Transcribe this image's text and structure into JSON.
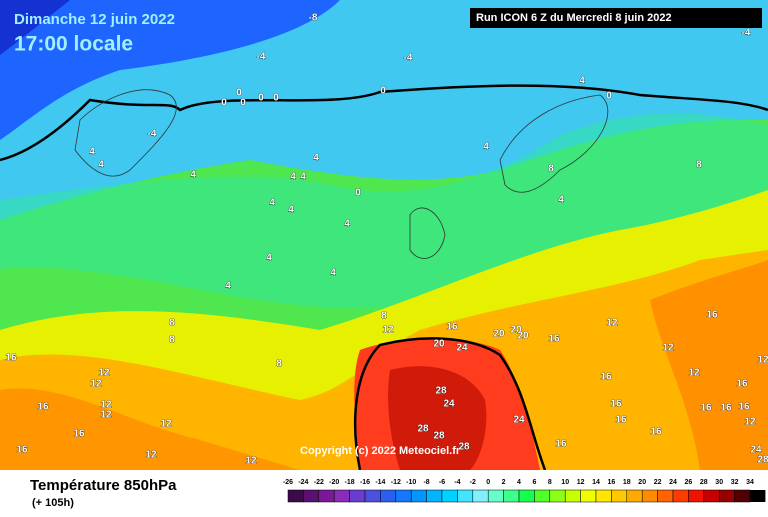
{
  "header": {
    "date": "Dimanche 12 juin 2022",
    "time": "17:00 locale"
  },
  "run": "Run ICON 6 Z du Mercredi 8 juin 2022",
  "copyright": "Copyright (c) 2022 Meteociel.fr",
  "footer": {
    "title": "Température 850hPa",
    "subtitle": "(+ 105h)"
  },
  "legend": {
    "ticks": [
      -26,
      -24,
      -22,
      -20,
      -18,
      -16,
      -14,
      -12,
      -10,
      -8,
      -6,
      -4,
      -2,
      0,
      2,
      4,
      6,
      8,
      10,
      12,
      14,
      16,
      18,
      20,
      22,
      24,
      26,
      28,
      30,
      32,
      34
    ],
    "colors": [
      "#3a0a4a",
      "#5a1070",
      "#7a1896",
      "#8a2cb8",
      "#6a3cd0",
      "#4a50e0",
      "#2a60f0",
      "#1478ff",
      "#0096ff",
      "#00b4ff",
      "#00d2ff",
      "#40e6ff",
      "#80f0ff",
      "#64ffc8",
      "#3cff8c",
      "#14ff50",
      "#50ff28",
      "#8cff14",
      "#c8ff00",
      "#f0ff00",
      "#ffe600",
      "#ffc800",
      "#ffaa00",
      "#ff8c00",
      "#ff6400",
      "#ff3c00",
      "#f01400",
      "#c80000",
      "#960000",
      "#500000"
    ]
  },
  "map": {
    "labels": [
      "-8",
      "-4",
      "-4",
      "-4",
      "0",
      "0",
      "0",
      "0",
      "0",
      "0",
      "0",
      "-4",
      "4",
      "4",
      "4",
      "4",
      "4",
      "4",
      "0",
      "4",
      "4",
      "4",
      "4",
      "4",
      "4",
      "4",
      "4",
      "8",
      "8",
      "4",
      "8",
      "8",
      "8",
      "8",
      "12",
      "16",
      "12",
      "12",
      "12",
      "12",
      "12",
      "16",
      "16",
      "16",
      "12",
      "12",
      "16",
      "20",
      "24",
      "20",
      "20",
      "20",
      "16",
      "12",
      "16",
      "12",
      "28",
      "24",
      "28",
      "28",
      "24",
      "28",
      "16",
      "16",
      "16",
      "16",
      "16",
      "16",
      "16",
      "16",
      "16",
      "12",
      "12",
      "12",
      "24",
      "28"
    ]
  }
}
